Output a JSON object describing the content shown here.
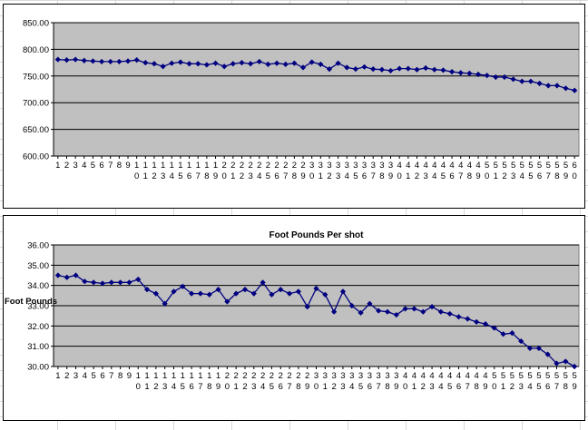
{
  "chart_data": [
    {
      "type": "line",
      "title": "",
      "xlabel": "",
      "ylabel": "",
      "ylim": [
        600,
        850
      ],
      "yticks": [
        "600.00",
        "650.00",
        "700.00",
        "750.00",
        "800.00",
        "850.00"
      ],
      "grid": true,
      "plot_bg": "#c0c0c0",
      "series_color": "#000080",
      "x": [
        1,
        2,
        3,
        4,
        5,
        6,
        7,
        8,
        9,
        10,
        11,
        12,
        13,
        14,
        15,
        16,
        17,
        18,
        19,
        20,
        21,
        22,
        23,
        24,
        25,
        26,
        27,
        28,
        29,
        30,
        31,
        32,
        33,
        34,
        35,
        36,
        37,
        38,
        39,
        40,
        41,
        42,
        43,
        44,
        45,
        46,
        47,
        48,
        49,
        50,
        51,
        52,
        53,
        54,
        55,
        56,
        57,
        58,
        59,
        60
      ],
      "series": [
        {
          "values": [
            781,
            780,
            781,
            779,
            778,
            777,
            777,
            777,
            778,
            780,
            775,
            773,
            768,
            774,
            776,
            773,
            773,
            771,
            774,
            768,
            773,
            775,
            773,
            777,
            772,
            774,
            772,
            774,
            766,
            776,
            772,
            763,
            774,
            766,
            763,
            767,
            763,
            762,
            760,
            764,
            764,
            762,
            765,
            762,
            761,
            758,
            756,
            755,
            753,
            751,
            748,
            748,
            744,
            740,
            740,
            736,
            732,
            732,
            727,
            723
          ]
        }
      ]
    },
    {
      "type": "line",
      "title": "Foot Pounds Per shot",
      "xlabel": "",
      "ylabel": "Foot Pounds",
      "ylim": [
        30,
        36
      ],
      "yticks": [
        "30.00",
        "31.00",
        "32.00",
        "33.00",
        "34.00",
        "35.00",
        "36.00"
      ],
      "grid": true,
      "plot_bg": "#c0c0c0",
      "series_color": "#000080",
      "x": [
        1,
        2,
        3,
        4,
        5,
        6,
        7,
        8,
        9,
        10,
        11,
        12,
        13,
        14,
        15,
        16,
        17,
        18,
        19,
        20,
        21,
        22,
        23,
        24,
        25,
        26,
        27,
        28,
        29,
        30,
        31,
        32,
        33,
        34,
        35,
        36,
        37,
        38,
        39,
        40,
        41,
        42,
        43,
        44,
        45,
        46,
        47,
        48,
        49,
        50,
        51,
        52,
        53,
        54,
        55,
        56,
        57,
        58,
        59
      ],
      "series": [
        {
          "values": [
            34.5,
            34.4,
            34.5,
            34.2,
            34.15,
            34.1,
            34.15,
            34.15,
            34.15,
            34.3,
            33.8,
            33.6,
            33.1,
            33.7,
            33.95,
            33.6,
            33.6,
            33.55,
            33.8,
            33.2,
            33.6,
            33.8,
            33.6,
            34.15,
            33.55,
            33.8,
            33.6,
            33.7,
            32.95,
            33.85,
            33.55,
            32.7,
            33.7,
            33.0,
            32.65,
            33.1,
            32.75,
            32.7,
            32.55,
            32.85,
            32.85,
            32.7,
            32.95,
            32.7,
            32.6,
            32.45,
            32.35,
            32.2,
            32.1,
            31.9,
            31.6,
            31.65,
            31.25,
            30.9,
            30.9,
            30.6,
            30.15,
            30.25,
            30.0
          ]
        }
      ]
    }
  ]
}
